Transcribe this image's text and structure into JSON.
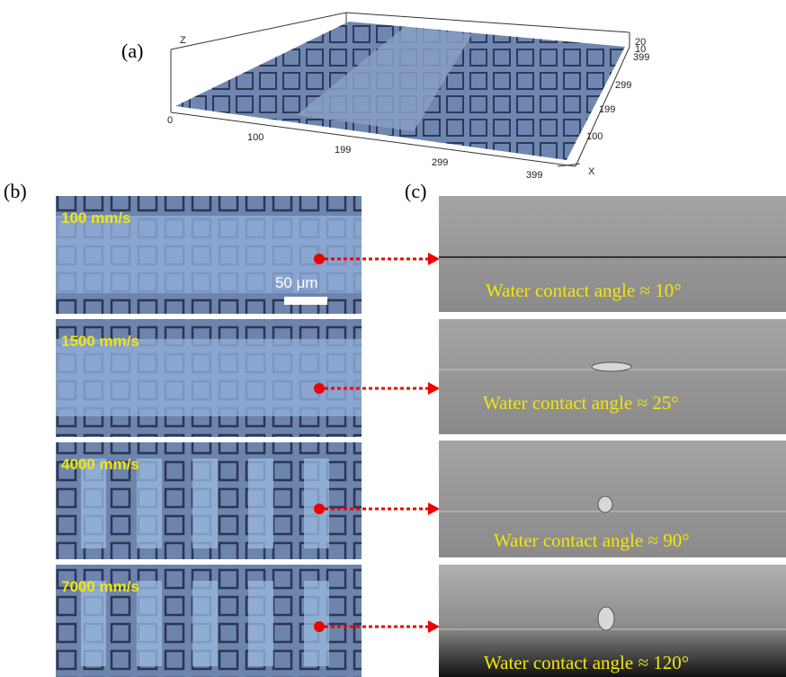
{
  "panel_a": {
    "label": "(a)",
    "z_label": "Z",
    "x_label": "X",
    "x_ticks": [
      "0",
      "100",
      "199",
      "299",
      "399"
    ],
    "z_ticks": [
      "20",
      "10"
    ],
    "y_ticks": [
      "399",
      "299",
      "199",
      "100"
    ]
  },
  "panel_b": {
    "label": "(b)",
    "scale_bar": "50 μm",
    "rows": [
      {
        "speed": "100 mm/s"
      },
      {
        "speed": "1500 mm/s"
      },
      {
        "speed": "4000 mm/s"
      },
      {
        "speed": "7000 mm/s"
      }
    ]
  },
  "panel_c": {
    "label": "(c)",
    "rows": [
      {
        "caption": "Water contact angle ≈ 10°"
      },
      {
        "caption": "Water contact angle ≈ 25°"
      },
      {
        "caption": "Water contact angle ≈ 90°"
      },
      {
        "caption": "Water contact angle ≈ 120°"
      }
    ]
  }
}
